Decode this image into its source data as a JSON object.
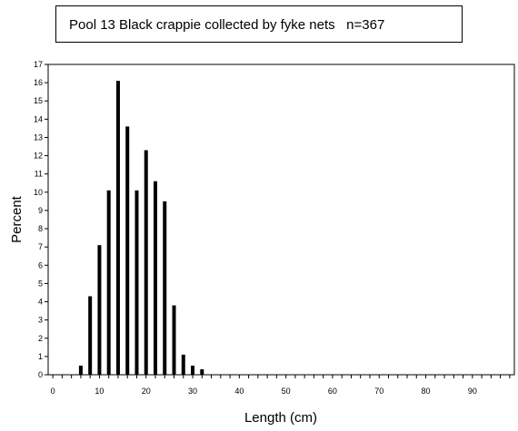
{
  "chart_data": {
    "type": "bar",
    "title": "Pool 13 Black crappie collected by fyke nets   n=367",
    "xlabel": "Length (cm)",
    "ylabel": "Percent",
    "xlim": [
      -1,
      99
    ],
    "ylim": [
      0,
      17
    ],
    "x_ticks": [
      "0",
      "10",
      "20",
      "30",
      "40",
      "50",
      "60",
      "70",
      "80",
      "90"
    ],
    "y_ticks": [
      "0",
      "1",
      "2",
      "3",
      "4",
      "5",
      "6",
      "7",
      "8",
      "9",
      "10",
      "11",
      "12",
      "13",
      "14",
      "15",
      "16",
      "17"
    ],
    "x": [
      6,
      8,
      10,
      12,
      14,
      16,
      18,
      20,
      22,
      24,
      26,
      28,
      30,
      32
    ],
    "values": [
      0.5,
      4.3,
      7.1,
      10.1,
      16.1,
      13.6,
      10.1,
      12.3,
      10.6,
      9.5,
      3.8,
      1.1,
      0.5,
      0.3
    ],
    "bar_color": "#000000",
    "grid": false
  }
}
